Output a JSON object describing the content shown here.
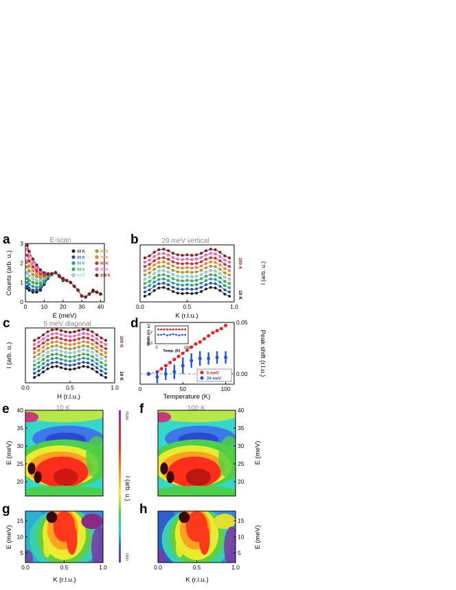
{
  "panels": {
    "a": {
      "letter": "a",
      "title": "E-scan",
      "xlabel": "E (meV)",
      "ylabel": "Counts (arb. u.)",
      "xticks": [
        "0",
        "10",
        "20",
        "30",
        "40"
      ],
      "yticks": [
        "0",
        "1",
        "2",
        "3"
      ]
    },
    "b": {
      "letter": "b",
      "title": "29 meV vertical",
      "xlabel": "K (r.l.u.)",
      "ylabel": "I (arb. u.)",
      "xticks": [
        "0.0",
        "0.5",
        "1.0"
      ],
      "label_top": "100 K",
      "label_bottom": "10 K"
    },
    "c": {
      "letter": "c",
      "title": "5 meV diagonal",
      "xlabel": "H (r.l.u.)",
      "ylabel": "I (arb. u.)",
      "xticks": [
        "0.0",
        "0.5",
        "1.0"
      ],
      "label_top": "100 K",
      "label_bottom": "10 K"
    },
    "d": {
      "letter": "d",
      "xlabel": "Temperature (K)",
      "ylabel": "Peak shift (r.l.u.)",
      "xticks": [
        "0",
        "50",
        "100"
      ],
      "yticks": [
        "0.00",
        "0.05"
      ],
      "inset_xlabel": "Temp. (K)",
      "inset_ylabel": "Width (r. l. u.)",
      "inset_xticks": [
        "0",
        "100"
      ],
      "inset_yticks": [
        "0.0",
        "0.2"
      ]
    },
    "e": {
      "letter": "e",
      "title": "10 K",
      "ylabel": "E (meV)",
      "yticks": [
        "20",
        "25",
        "30",
        "35",
        "40"
      ]
    },
    "f": {
      "letter": "f",
      "title": "100 K",
      "ylabel": "E (meV)",
      "yticks": [
        "20",
        "25",
        "30",
        "35",
        "40"
      ]
    },
    "g": {
      "letter": "g",
      "xlabel": "K (r.l.u.)",
      "ylabel": "E (meV)",
      "xticks": [
        "0.0",
        "0.5",
        "1.0"
      ],
      "yticks": [
        "5",
        "10",
        "15"
      ]
    },
    "h": {
      "letter": "h",
      "xlabel": "K (r.l.u.)",
      "ylabel": "E (meV)",
      "xticks": [
        "0.0",
        "0.5",
        "1.0"
      ],
      "yticks": [
        "5",
        "10",
        "15"
      ]
    },
    "colorbar": {
      "max": "max",
      "min": "min",
      "label": "I (arb. u.)"
    }
  },
  "colors": {
    "10 K": "#1a1a1a",
    "20 K": "#1f4fbf",
    "30 K": "#17a8a0",
    "40 K": "#3cb84a",
    "50 K": "#8fe0f0",
    "60 K": "#b8a020",
    "70 K": "#ff8c2a",
    "80 K": "#e52222",
    "90 K": "#ff66cc",
    "100 K": "#8b1a1a",
    "series_5meV": "#e52222",
    "series_29meV": "#2255dd"
  },
  "chart_data": [
    {
      "type": "line",
      "panel": "a",
      "title": "E-scan",
      "xlabel": "E (meV)",
      "ylabel": "Counts (arb. u.)",
      "xlim": [
        0,
        42
      ],
      "ylim": [
        0,
        3
      ],
      "legend": "top-right",
      "series": [
        {
          "name": "10 K",
          "x": [
            1,
            2,
            4,
            6,
            8,
            10,
            12,
            14,
            16,
            18,
            20,
            22,
            24,
            26,
            28,
            30,
            32,
            34,
            36,
            38,
            40
          ],
          "values": [
            0.7,
            0.6,
            0.5,
            0.5,
            0.6,
            0.9,
            1.2,
            1.4,
            1.5,
            1.3,
            1.1,
            1.1,
            1.0,
            0.8,
            0.6,
            0.3,
            0.25,
            0.4,
            0.6,
            0.5,
            0.4
          ]
        },
        {
          "name": "20 K",
          "x": [
            1,
            2,
            4,
            6,
            8,
            10,
            12,
            14,
            16,
            18,
            20,
            22,
            24,
            26,
            28,
            30,
            32,
            34,
            36,
            38,
            40
          ],
          "values": [
            0.8,
            0.7,
            0.6,
            0.6,
            0.7,
            0.95,
            1.2,
            1.4,
            1.5,
            1.3,
            1.15,
            1.1,
            1.0,
            0.8,
            0.6,
            0.3,
            0.25,
            0.4,
            0.55,
            0.5,
            0.4
          ]
        },
        {
          "name": "30 K",
          "x": [
            1,
            2,
            4,
            6,
            8,
            10,
            12,
            14,
            16,
            18,
            20,
            22,
            24,
            26,
            28,
            30,
            32,
            34,
            36,
            38,
            40
          ],
          "values": [
            1.0,
            0.9,
            0.8,
            0.75,
            0.8,
            1.0,
            1.25,
            1.4,
            1.5,
            1.35,
            1.15,
            1.1,
            1.0,
            0.8,
            0.6,
            0.3,
            0.25,
            0.4,
            0.55,
            0.5,
            0.4
          ]
        },
        {
          "name": "40 K",
          "x": [
            1,
            2,
            4,
            6,
            8,
            10,
            12,
            14,
            16,
            18,
            20,
            22,
            24,
            26,
            28,
            30,
            32,
            34,
            36,
            38,
            40
          ],
          "values": [
            1.2,
            1.1,
            1.0,
            0.95,
            0.95,
            1.1,
            1.3,
            1.45,
            1.5,
            1.35,
            1.2,
            1.1,
            1.0,
            0.8,
            0.6,
            0.3,
            0.25,
            0.4,
            0.55,
            0.5,
            0.4
          ]
        },
        {
          "name": "50 K",
          "x": [
            1,
            2,
            4,
            6,
            8,
            10,
            12,
            14,
            16,
            18,
            20,
            22,
            24,
            26,
            28,
            30,
            32,
            34,
            36,
            38,
            40
          ],
          "values": [
            1.5,
            1.35,
            1.2,
            1.1,
            1.1,
            1.2,
            1.35,
            1.45,
            1.5,
            1.35,
            1.2,
            1.1,
            1.0,
            0.8,
            0.6,
            0.3,
            0.25,
            0.4,
            0.55,
            0.5,
            0.4
          ]
        },
        {
          "name": "60 K",
          "x": [
            1,
            2,
            4,
            6,
            8,
            10,
            12,
            14,
            16,
            18,
            20,
            22,
            24,
            26,
            28,
            30,
            32,
            34,
            36,
            38,
            40
          ],
          "values": [
            1.8,
            1.6,
            1.4,
            1.3,
            1.25,
            1.3,
            1.4,
            1.45,
            1.5,
            1.35,
            1.2,
            1.1,
            1.0,
            0.8,
            0.6,
            0.3,
            0.25,
            0.4,
            0.55,
            0.5,
            0.4
          ]
        },
        {
          "name": "70 K",
          "x": [
            1,
            2,
            4,
            6,
            8,
            10,
            12,
            14,
            16,
            18,
            20,
            22,
            24,
            26,
            28,
            30,
            32,
            34,
            36,
            38,
            40
          ],
          "values": [
            2.1,
            1.85,
            1.6,
            1.45,
            1.35,
            1.35,
            1.4,
            1.45,
            1.5,
            1.35,
            1.2,
            1.1,
            1.0,
            0.8,
            0.6,
            0.3,
            0.25,
            0.4,
            0.55,
            0.5,
            0.4
          ]
        },
        {
          "name": "80 K",
          "x": [
            1,
            2,
            4,
            6,
            8,
            10,
            12,
            14,
            16,
            18,
            20,
            22,
            24,
            26,
            28,
            30,
            32,
            34,
            36,
            38,
            40
          ],
          "values": [
            2.4,
            2.1,
            1.8,
            1.6,
            1.45,
            1.4,
            1.4,
            1.45,
            1.5,
            1.35,
            1.2,
            1.1,
            1.0,
            0.8,
            0.6,
            0.3,
            0.25,
            0.4,
            0.55,
            0.5,
            0.4
          ]
        },
        {
          "name": "90 K",
          "x": [
            1,
            2,
            4,
            6,
            8,
            10,
            12,
            14,
            16,
            18,
            20,
            22,
            24,
            26,
            28,
            30,
            32,
            34,
            36,
            38,
            40
          ],
          "values": [
            2.7,
            2.35,
            2.0,
            1.75,
            1.55,
            1.45,
            1.45,
            1.45,
            1.5,
            1.35,
            1.2,
            1.1,
            1.0,
            0.8,
            0.6,
            0.3,
            0.25,
            0.4,
            0.55,
            0.5,
            0.4
          ]
        },
        {
          "name": "100 K",
          "x": [
            1,
            2,
            4,
            6,
            8,
            10,
            12,
            14,
            16,
            18,
            20,
            22,
            24,
            26,
            28,
            30,
            32,
            34,
            36,
            38,
            40
          ],
          "values": [
            2.9,
            2.6,
            2.2,
            1.9,
            1.65,
            1.5,
            1.45,
            1.45,
            1.5,
            1.35,
            1.2,
            1.1,
            1.0,
            0.8,
            0.6,
            0.3,
            0.25,
            0.4,
            0.55,
            0.5,
            0.4
          ]
        }
      ]
    },
    {
      "type": "line",
      "panel": "b",
      "title": "29 meV vertical",
      "xlabel": "K (r.l.u.)",
      "ylabel": "I (arb. u.)",
      "xlim": [
        0,
        1
      ],
      "temperatures": [
        "10 K",
        "20 K",
        "30 K",
        "40 K",
        "50 K",
        "60 K",
        "70 K",
        "80 K",
        "90 K",
        "100 K"
      ],
      "profile": {
        "x": [
          0.05,
          0.1,
          0.15,
          0.2,
          0.25,
          0.3,
          0.35,
          0.4,
          0.45,
          0.5,
          0.55,
          0.6,
          0.65,
          0.7,
          0.75,
          0.8,
          0.85,
          0.9,
          0.95
        ],
        "values": [
          0.15,
          0.35,
          0.7,
          0.95,
          1.0,
          0.85,
          0.6,
          0.45,
          0.4,
          0.45,
          0.4,
          0.45,
          0.6,
          0.85,
          1.0,
          0.95,
          0.7,
          0.35,
          0.15
        ]
      }
    },
    {
      "type": "line",
      "panel": "c",
      "title": "5 meV diagonal",
      "xlabel": "H (r.l.u.)",
      "ylabel": "I (arb. u.)",
      "xlim": [
        0,
        1
      ],
      "temperatures": [
        "10 K",
        "20 K",
        "30 K",
        "40 K",
        "50 K",
        "60 K",
        "70 K",
        "80 K",
        "90 K",
        "100 K"
      ],
      "profile": {
        "x": [
          0.1,
          0.15,
          0.2,
          0.25,
          0.3,
          0.35,
          0.4,
          0.45,
          0.5,
          0.55,
          0.6,
          0.65,
          0.7,
          0.75,
          0.8,
          0.85,
          0.9
        ],
        "values": [
          0.1,
          0.3,
          0.55,
          0.8,
          0.95,
          1.0,
          0.9,
          0.8,
          0.75,
          0.8,
          0.9,
          1.0,
          0.95,
          0.8,
          0.55,
          0.3,
          0.1
        ]
      }
    },
    {
      "type": "scatter",
      "panel": "d",
      "xlabel": "Temperature (K)",
      "ylabel": "Peak shift (r.l.u.)",
      "xlim": [
        0,
        110
      ],
      "ylim": [
        -0.01,
        0.05
      ],
      "series": [
        {
          "name": "5 meV",
          "x": [
            10,
            20,
            25,
            30,
            35,
            40,
            45,
            50,
            55,
            60,
            65,
            70,
            75,
            80,
            85,
            90,
            95,
            100
          ],
          "values": [
            0.0,
            0.002,
            0.005,
            0.008,
            0.011,
            0.014,
            0.017,
            0.02,
            0.023,
            0.026,
            0.029,
            0.031,
            0.034,
            0.037,
            0.04,
            0.042,
            0.044,
            0.047
          ]
        },
        {
          "name": "29 meV",
          "x": [
            10,
            20,
            30,
            40,
            50,
            60,
            70,
            80,
            90,
            100
          ],
          "values": [
            0.0,
            -0.003,
            0.0,
            0.002,
            0.008,
            0.013,
            0.015,
            0.015,
            0.016,
            0.016
          ],
          "errors": [
            0.002,
            0.006,
            0.006,
            0.007,
            0.008,
            0.007,
            0.007,
            0.006,
            0.006,
            0.006
          ]
        }
      ],
      "inset": {
        "xlabel": "Temp. (K)",
        "ylabel": "Width (r. l. u.)",
        "series": [
          {
            "name": "5 meV",
            "x": [
              10,
              20,
              30,
              40,
              50,
              60,
              70,
              80,
              90,
              100
            ],
            "values": [
              0.24,
              0.24,
              0.24,
              0.24,
              0.24,
              0.24,
              0.24,
              0.24,
              0.24,
              0.24
            ]
          },
          {
            "name": "29 meV",
            "x": [
              10,
              20,
              30,
              40,
              50,
              60,
              70,
              80,
              90,
              100
            ],
            "values": [
              0.15,
              0.15,
              0.16,
              0.14,
              0.15,
              0.16,
              0.15,
              0.14,
              0.15,
              0.15
            ]
          }
        ]
      }
    },
    {
      "type": "heatmap",
      "panel": "e",
      "title": "10 K",
      "xlim": [
        0,
        1
      ],
      "ylim": [
        16,
        40
      ]
    },
    {
      "type": "heatmap",
      "panel": "f",
      "title": "100 K",
      "xlim": [
        0,
        1
      ],
      "ylim": [
        16,
        40
      ]
    },
    {
      "type": "heatmap",
      "panel": "g",
      "xlabel": "K (r.l.u.)",
      "xlim": [
        0,
        1
      ],
      "ylim": [
        2,
        18
      ]
    },
    {
      "type": "heatmap",
      "panel": "h",
      "xlabel": "K (r.l.u.)",
      "xlim": [
        0,
        1
      ],
      "ylim": [
        2,
        18
      ]
    }
  ]
}
